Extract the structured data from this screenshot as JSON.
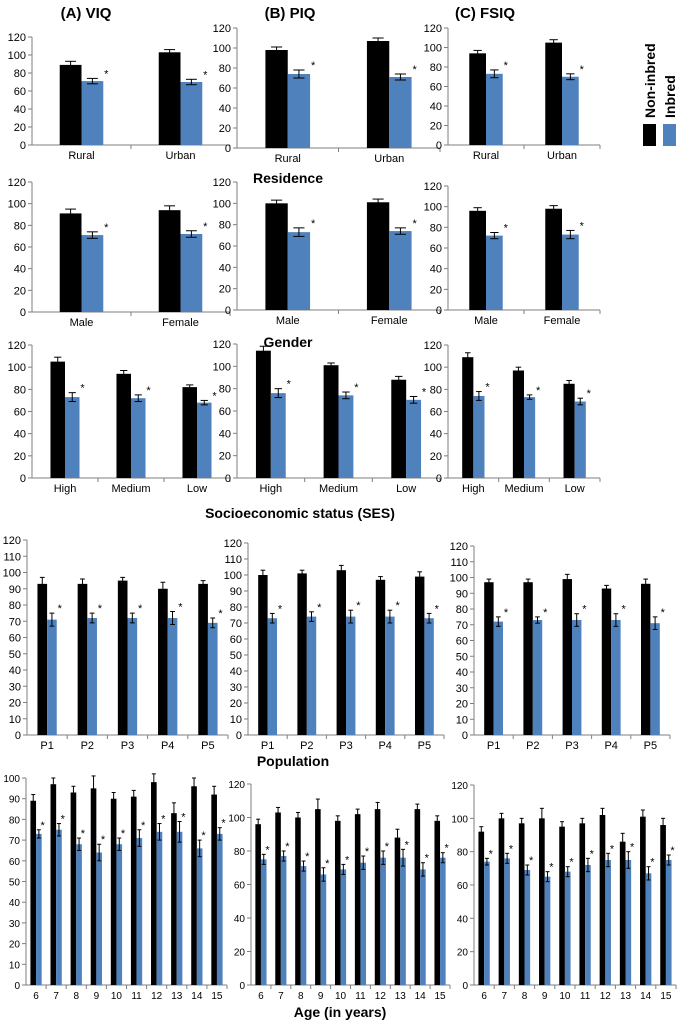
{
  "colors": {
    "non_inbred": "#000000",
    "inbred": "#4f81bd",
    "axis": "#7f7f7f"
  },
  "column_titles": [
    "(A) VIQ",
    "(B) PIQ",
    "(C) FSIQ"
  ],
  "legend": {
    "items": [
      "Non-inbred",
      "Inbred"
    ],
    "placement": "right"
  },
  "significance_marker": "*",
  "chart_data": [
    {
      "type": "bar",
      "group": "Residence",
      "measure": "VIQ",
      "categories": [
        "Rural",
        "Urban"
      ],
      "ylim": [
        0,
        120
      ],
      "yticks": [
        0,
        20,
        40,
        60,
        80,
        100,
        120
      ],
      "series": [
        {
          "name": "Non-inbred",
          "values": [
            89,
            103
          ],
          "errors": [
            4,
            3
          ]
        },
        {
          "name": "Inbred",
          "values": [
            71,
            70
          ],
          "errors": [
            3,
            3
          ]
        }
      ]
    },
    {
      "type": "bar",
      "group": "Residence",
      "measure": "PIQ",
      "categories": [
        "Rural",
        "Urban"
      ],
      "ylim": [
        0,
        120
      ],
      "yticks": [
        0,
        20,
        40,
        60,
        80,
        100,
        120
      ],
      "series": [
        {
          "name": "Non-inbred",
          "values": [
            98,
            107
          ],
          "errors": [
            3,
            3
          ]
        },
        {
          "name": "Inbred",
          "values": [
            74,
            71
          ],
          "errors": [
            4,
            3
          ]
        }
      ]
    },
    {
      "type": "bar",
      "group": "Residence",
      "measure": "FSIQ",
      "categories": [
        "Rural",
        "Urban"
      ],
      "ylim": [
        0,
        120
      ],
      "yticks": [
        0,
        20,
        40,
        60,
        80,
        100,
        120
      ],
      "series": [
        {
          "name": "Non-inbred",
          "values": [
            94,
            105
          ],
          "errors": [
            3,
            3
          ]
        },
        {
          "name": "Inbred",
          "values": [
            73,
            70
          ],
          "errors": [
            4,
            3
          ]
        }
      ]
    },
    {
      "type": "bar",
      "group": "Gender",
      "measure": "VIQ",
      "categories": [
        "Male",
        "Female"
      ],
      "ylim": [
        0,
        120
      ],
      "yticks": [
        0,
        20,
        40,
        60,
        80,
        100,
        120
      ],
      "series": [
        {
          "name": "Non-inbred",
          "values": [
            91,
            94
          ],
          "errors": [
            4,
            4
          ]
        },
        {
          "name": "Inbred",
          "values": [
            71,
            72
          ],
          "errors": [
            3,
            3
          ]
        }
      ]
    },
    {
      "type": "bar",
      "group": "Gender",
      "measure": "PIQ",
      "categories": [
        "Male",
        "Female"
      ],
      "ylim": [
        0,
        120
      ],
      "yticks": [
        0,
        20,
        40,
        60,
        80,
        100,
        120
      ],
      "series": [
        {
          "name": "Non-inbred",
          "values": [
            100,
            101
          ],
          "errors": [
            3,
            3
          ]
        },
        {
          "name": "Inbred",
          "values": [
            73,
            74
          ],
          "errors": [
            4,
            3
          ]
        }
      ]
    },
    {
      "type": "bar",
      "group": "Gender",
      "measure": "FSIQ",
      "categories": [
        "Male",
        "Female"
      ],
      "ylim": [
        0,
        120
      ],
      "yticks": [
        0,
        20,
        40,
        60,
        80,
        100,
        120
      ],
      "series": [
        {
          "name": "Non-inbred",
          "values": [
            96,
            98
          ],
          "errors": [
            3,
            3
          ]
        },
        {
          "name": "Inbred",
          "values": [
            72,
            73
          ],
          "errors": [
            3,
            4
          ]
        }
      ]
    },
    {
      "type": "bar",
      "group": "Socioeconomic status (SES)",
      "measure": "VIQ",
      "categories": [
        "High",
        "Medium",
        "Low"
      ],
      "ylim": [
        0,
        120
      ],
      "yticks": [
        0,
        20,
        40,
        60,
        80,
        100,
        120
      ],
      "series": [
        {
          "name": "Non-inbred",
          "values": [
            105,
            94,
            82
          ],
          "errors": [
            4,
            3,
            2
          ]
        },
        {
          "name": "Inbred",
          "values": [
            73,
            72,
            68
          ],
          "errors": [
            4,
            3,
            2
          ]
        }
      ]
    },
    {
      "type": "bar",
      "group": "Socioeconomic status (SES)",
      "measure": "PIQ",
      "categories": [
        "High",
        "Medium",
        "Low"
      ],
      "ylim": [
        0,
        120
      ],
      "yticks": [
        0,
        20,
        40,
        60,
        80,
        100,
        120
      ],
      "series": [
        {
          "name": "Non-inbred",
          "values": [
            114,
            101,
            88
          ],
          "errors": [
            4,
            2,
            3
          ]
        },
        {
          "name": "Inbred",
          "values": [
            76,
            74,
            70
          ],
          "errors": [
            4,
            3,
            3
          ]
        }
      ]
    },
    {
      "type": "bar",
      "group": "Socioeconomic status (SES)",
      "measure": "FSIQ",
      "categories": [
        "High",
        "Medium",
        "Low"
      ],
      "ylim": [
        0,
        120
      ],
      "yticks": [
        0,
        20,
        40,
        60,
        80,
        100,
        120
      ],
      "series": [
        {
          "name": "Non-inbred",
          "values": [
            109,
            97,
            85
          ],
          "errors": [
            4,
            3,
            3
          ]
        },
        {
          "name": "Inbred",
          "values": [
            74,
            73,
            69
          ],
          "errors": [
            4,
            2,
            3
          ]
        }
      ]
    },
    {
      "type": "bar",
      "group": "Population",
      "measure": "VIQ",
      "categories": [
        "P1",
        "P2",
        "P3",
        "P4",
        "P5"
      ],
      "ylim": [
        0,
        120
      ],
      "yticks": [
        0,
        10,
        20,
        30,
        40,
        50,
        60,
        70,
        80,
        90,
        100,
        110,
        120
      ],
      "series": [
        {
          "name": "Non-inbred",
          "values": [
            93,
            93,
            95,
            90,
            93
          ],
          "errors": [
            4,
            3,
            2,
            4,
            2
          ]
        },
        {
          "name": "Inbred",
          "values": [
            71,
            72,
            72,
            72,
            69
          ],
          "errors": [
            4,
            3,
            3,
            4,
            3
          ]
        }
      ]
    },
    {
      "type": "bar",
      "group": "Population",
      "measure": "PIQ",
      "categories": [
        "P1",
        "P2",
        "P3",
        "P4",
        "P5"
      ],
      "ylim": [
        0,
        120
      ],
      "yticks": [
        0,
        10,
        20,
        30,
        40,
        50,
        60,
        70,
        80,
        90,
        100,
        110,
        120
      ],
      "series": [
        {
          "name": "Non-inbred",
          "values": [
            100,
            101,
            103,
            97,
            99
          ],
          "errors": [
            3,
            2,
            3,
            2,
            3
          ]
        },
        {
          "name": "Inbred",
          "values": [
            73,
            74,
            74,
            74,
            73
          ],
          "errors": [
            3,
            3,
            4,
            4,
            3
          ]
        }
      ]
    },
    {
      "type": "bar",
      "group": "Population",
      "measure": "FSIQ",
      "categories": [
        "P1",
        "P2",
        "P3",
        "P4",
        "P5"
      ],
      "ylim": [
        0,
        120
      ],
      "yticks": [
        0,
        10,
        20,
        30,
        40,
        50,
        60,
        70,
        80,
        90,
        100,
        110,
        120
      ],
      "series": [
        {
          "name": "Non-inbred",
          "values": [
            97,
            97,
            99,
            93,
            96
          ],
          "errors": [
            2,
            2,
            3,
            2,
            3
          ]
        },
        {
          "name": "Inbred",
          "values": [
            72,
            73,
            73,
            73,
            71
          ],
          "errors": [
            3,
            2,
            4,
            4,
            4
          ]
        }
      ]
    },
    {
      "type": "bar",
      "group": "Age (in years)",
      "measure": "VIQ",
      "categories": [
        "6",
        "7",
        "8",
        "9",
        "10",
        "11",
        "12",
        "13",
        "14",
        "15"
      ],
      "ylim": [
        0,
        100
      ],
      "yticks": [
        0,
        10,
        20,
        30,
        40,
        50,
        60,
        70,
        80,
        90,
        100
      ],
      "series": [
        {
          "name": "Non-inbred",
          "values": [
            89,
            97,
            93,
            95,
            90,
            91,
            98,
            83,
            96,
            92
          ],
          "errors": [
            3,
            3,
            3,
            6,
            3,
            3,
            4,
            5,
            4,
            4
          ]
        },
        {
          "name": "Inbred",
          "values": [
            73,
            75,
            68,
            64,
            68,
            71,
            74,
            74,
            66,
            73
          ],
          "errors": [
            2,
            3,
            3,
            4,
            3,
            4,
            4,
            5,
            4,
            3
          ]
        }
      ]
    },
    {
      "type": "bar",
      "group": "Age (in years)",
      "measure": "PIQ",
      "categories": [
        "6",
        "7",
        "8",
        "9",
        "10",
        "11",
        "12",
        "13",
        "14",
        "15"
      ],
      "ylim": [
        0,
        120
      ],
      "yticks": [
        0,
        20,
        40,
        60,
        80,
        100,
        120
      ],
      "series": [
        {
          "name": "Non-inbred",
          "values": [
            96,
            103,
            100,
            105,
            98,
            102,
            105,
            88,
            105,
            98
          ],
          "errors": [
            3,
            3,
            3,
            6,
            3,
            3,
            4,
            5,
            3,
            3
          ]
        },
        {
          "name": "Inbred",
          "values": [
            75,
            77,
            71,
            66,
            69,
            73,
            76,
            76,
            69,
            76
          ],
          "errors": [
            3,
            3,
            3,
            4,
            3,
            4,
            4,
            5,
            4,
            3
          ]
        }
      ]
    },
    {
      "type": "bar",
      "group": "Age (in years)",
      "measure": "FSIQ",
      "categories": [
        "6",
        "7",
        "8",
        "9",
        "10",
        "11",
        "12",
        "13",
        "14",
        "15"
      ],
      "ylim": [
        0,
        120
      ],
      "yticks": [
        0,
        20,
        40,
        60,
        80,
        100,
        120
      ],
      "series": [
        {
          "name": "Non-inbred",
          "values": [
            92,
            100,
            97,
            100,
            95,
            97,
            102,
            86,
            101,
            96
          ],
          "errors": [
            3,
            3,
            3,
            6,
            3,
            3,
            4,
            5,
            4,
            4
          ]
        },
        {
          "name": "Inbred",
          "values": [
            74,
            76,
            69,
            65,
            68,
            72,
            75,
            75,
            67,
            75
          ],
          "errors": [
            2,
            3,
            3,
            3,
            3,
            4,
            4,
            5,
            4,
            3
          ]
        }
      ]
    }
  ]
}
